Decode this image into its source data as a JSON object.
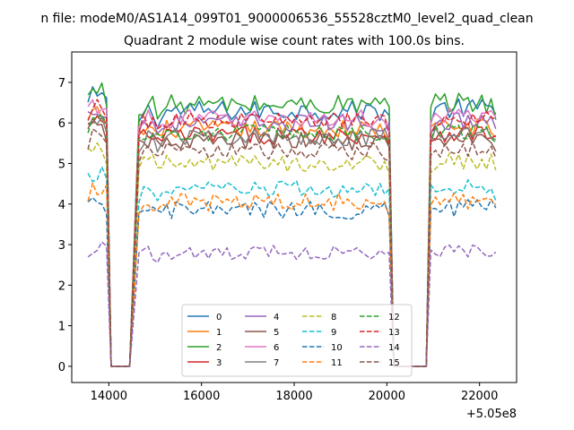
{
  "chart_data": {
    "type": "line",
    "suptitle": "n file: modeM0/AS1A14_099T01_9000006536_55528cztM0_level2_quad_clean",
    "title": "Quadrant 2 module wise count rates with 100.0s bins.",
    "xlabel": "",
    "ylabel": "",
    "x_offset_label": "+5.05e8",
    "xlim": [
      13200,
      22800
    ],
    "ylim": [
      -0.4,
      7.75
    ],
    "x_ticks": [
      14000,
      16000,
      18000,
      20000,
      22000
    ],
    "x_tick_labels": [
      "14000",
      "16000",
      "18000",
      "20000",
      "22000"
    ],
    "y_ticks": [
      0,
      1,
      2,
      3,
      4,
      5,
      6,
      7
    ],
    "y_tick_labels": [
      "0",
      "1",
      "2",
      "3",
      "4",
      "5",
      "6",
      "7"
    ],
    "bin_size_s": 100,
    "segments": [
      {
        "start": 13550,
        "end": 13950
      },
      {
        "start": 14050,
        "end": 14450
      },
      {
        "start": 14650,
        "end": 15050
      },
      {
        "start": 15150,
        "end": 20050
      },
      {
        "start": 20150,
        "end": 20850
      },
      {
        "start": 20950,
        "end": 22350
      }
    ],
    "active_segments": [
      0,
      2,
      3,
      5
    ],
    "legend_position": "lower center",
    "series": [
      {
        "name": "0",
        "level": 6.3,
        "noise": 0.25,
        "color": "#1f77b4",
        "dash": "solid"
      },
      {
        "name": "1",
        "level": 5.85,
        "noise": 0.22,
        "color": "#ff7f0e",
        "dash": "solid"
      },
      {
        "name": "2",
        "level": 6.45,
        "noise": 0.25,
        "color": "#2ca02c",
        "dash": "solid"
      },
      {
        "name": "3",
        "level": 5.7,
        "noise": 0.22,
        "color": "#d62728",
        "dash": "solid"
      },
      {
        "name": "4",
        "level": 6.0,
        "noise": 0.22,
        "color": "#9467bd",
        "dash": "solid"
      },
      {
        "name": "5",
        "level": 5.55,
        "noise": 0.22,
        "color": "#8c564b",
        "dash": "solid"
      },
      {
        "name": "6",
        "level": 6.1,
        "noise": 0.22,
        "color": "#e377c2",
        "dash": "solid"
      },
      {
        "name": "7",
        "level": 5.65,
        "noise": 0.22,
        "color": "#7f7f7f",
        "dash": "solid"
      },
      {
        "name": "8",
        "level": 5.0,
        "noise": 0.22,
        "color": "#bcbd22",
        "dash": "dashed"
      },
      {
        "name": "9",
        "level": 4.35,
        "noise": 0.22,
        "color": "#17becf",
        "dash": "dashed"
      },
      {
        "name": "10",
        "level": 3.85,
        "noise": 0.22,
        "color": "#1f77b4",
        "dash": "dashed"
      },
      {
        "name": "11",
        "level": 4.05,
        "noise": 0.22,
        "color": "#ff7f0e",
        "dash": "dashed"
      },
      {
        "name": "12",
        "level": 5.75,
        "noise": 0.2,
        "color": "#2ca02c",
        "dash": "dashed"
      },
      {
        "name": "13",
        "level": 6.05,
        "noise": 0.2,
        "color": "#d62728",
        "dash": "dashed"
      },
      {
        "name": "14",
        "level": 2.8,
        "noise": 0.18,
        "color": "#9467bd",
        "dash": "dashed"
      },
      {
        "name": "15",
        "level": 5.3,
        "noise": 0.22,
        "color": "#8c564b",
        "dash": "dashed"
      }
    ]
  }
}
